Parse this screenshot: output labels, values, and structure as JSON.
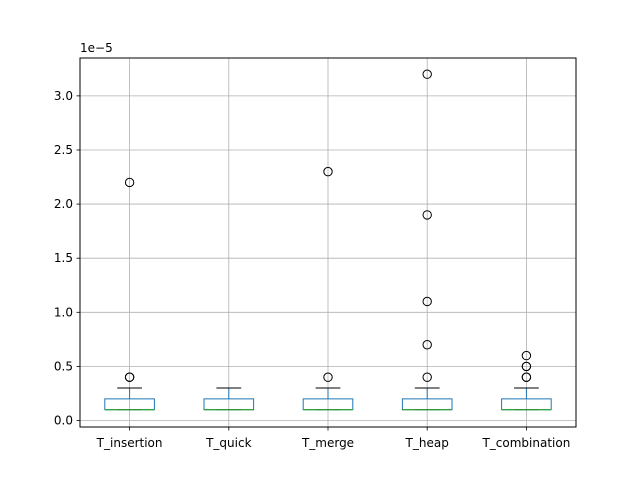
{
  "chart_data": {
    "type": "box",
    "title": "",
    "xlabel": "",
    "ylabel": "",
    "y_offset_label": "1e−5",
    "ylim": [
      -0.06,
      3.35
    ],
    "y_ticks": [
      0.0,
      0.5,
      1.0,
      1.5,
      2.0,
      2.5,
      3.0
    ],
    "y_tick_labels": [
      "0.0",
      "0.5",
      "1.0",
      "1.5",
      "2.0",
      "2.5",
      "3.0"
    ],
    "grid": true,
    "colors": {
      "box": "#1f77b4",
      "median": "#2ca02c",
      "whisker": "#000000",
      "grid": "#b0b0b0"
    },
    "categories": [
      "T_insertion",
      "T_quick",
      "T_merge",
      "T_heap",
      "T_combination"
    ],
    "boxes": [
      {
        "name": "T_insertion",
        "whislo": 0.1,
        "q1": 0.1,
        "med": 0.1,
        "q3": 0.2,
        "whishi": 0.3,
        "fliers": [
          2.2,
          0.4,
          0.4
        ]
      },
      {
        "name": "T_quick",
        "whislo": 0.1,
        "q1": 0.1,
        "med": 0.1,
        "q3": 0.2,
        "whishi": 0.3,
        "fliers": []
      },
      {
        "name": "T_merge",
        "whislo": 0.1,
        "q1": 0.1,
        "med": 0.1,
        "q3": 0.2,
        "whishi": 0.3,
        "fliers": [
          2.3,
          0.4
        ]
      },
      {
        "name": "T_heap",
        "whislo": 0.1,
        "q1": 0.1,
        "med": 0.1,
        "q3": 0.2,
        "whishi": 0.3,
        "fliers": [
          3.2,
          1.9,
          1.1,
          0.7,
          0.4
        ]
      },
      {
        "name": "T_combination",
        "whislo": 0.1,
        "q1": 0.1,
        "med": 0.1,
        "q3": 0.2,
        "whishi": 0.3,
        "fliers": [
          0.6,
          0.5,
          0.5,
          0.4,
          0.4
        ]
      }
    ]
  }
}
